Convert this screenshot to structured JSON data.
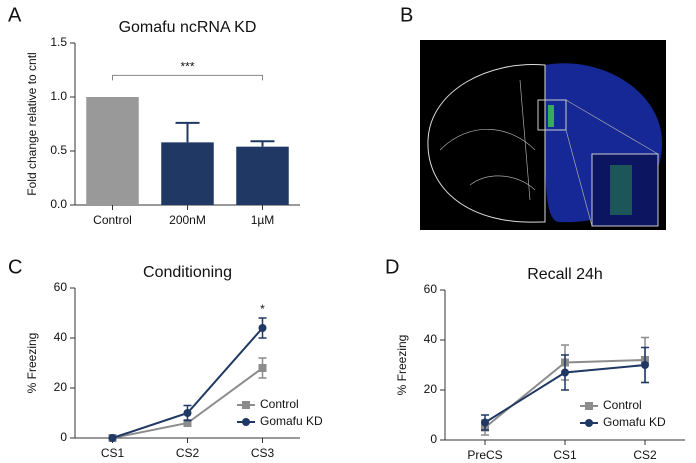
{
  "panel_labels": [
    "A",
    "B",
    "C",
    "D"
  ],
  "chart_data": [
    {
      "type": "bar",
      "title": "Gomafu ncRNA KD",
      "y_label": "Fold change relative to cntl",
      "categories": [
        "Control",
        "200nM",
        "1µM"
      ],
      "values": [
        1.0,
        0.58,
        0.54
      ],
      "errors": [
        0,
        0.18,
        0.05
      ],
      "colors": [
        "#999999",
        "#1f3864",
        "#1f3864"
      ],
      "ylim": [
        0,
        1.5
      ],
      "yticks": [
        {
          "value": 0,
          "label": "0.0"
        },
        {
          "value": 0.5,
          "label": "0.5"
        },
        {
          "value": 1,
          "label": "1.0"
        },
        {
          "value": 1.5,
          "label": "1.5"
        }
      ],
      "annotations": [
        "***"
      ]
    },
    {
      "type": "line",
      "title": "Conditioning",
      "y_label": "% Freezing",
      "categories": [
        "CS1",
        "CS2",
        "CS3"
      ],
      "series": [
        {
          "name": "Control",
          "color": "#8c8c8c",
          "marker": "square",
          "values": [
            0,
            6,
            28
          ],
          "errors": [
            0,
            1,
            4
          ]
        },
        {
          "name": "Gomafu KD",
          "color": "#1f3864",
          "marker": "circle",
          "values": [
            0,
            10,
            44
          ],
          "errors": [
            0,
            3,
            4
          ]
        }
      ],
      "ylim": [
        0,
        60
      ],
      "yticks": [
        0,
        20,
        40,
        60
      ],
      "annotations": [
        "*"
      ]
    },
    {
      "type": "line",
      "title": "Recall 24h",
      "y_label": "% Freezing",
      "categories": [
        "PreCS",
        "CS1",
        "CS2"
      ],
      "series": [
        {
          "name": "Control",
          "color": "#8c8c8c",
          "marker": "square",
          "values": [
            5,
            31,
            32
          ],
          "errors": [
            3,
            7,
            9
          ]
        },
        {
          "name": "Gomafu KD",
          "color": "#1f3864",
          "marker": "circle",
          "values": [
            7,
            27,
            30
          ],
          "errors": [
            3,
            7,
            7
          ]
        }
      ],
      "ylim": [
        0,
        60
      ],
      "yticks": [
        0,
        20,
        40,
        60
      ]
    }
  ]
}
